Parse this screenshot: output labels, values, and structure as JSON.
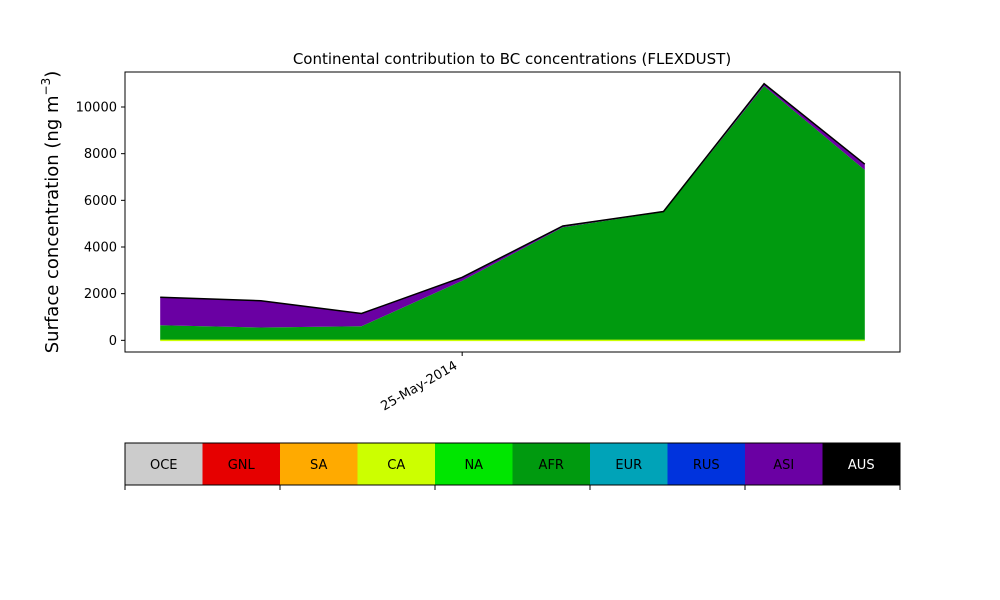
{
  "chart_data": {
    "type": "area",
    "stacked": true,
    "title": "Continental contribution to BC concentrations (FLEXDUST)",
    "ylabel_main": "Surface concentration (ng m",
    "ylabel_sup": "−3",
    "ylabel_close": ")",
    "ylim": [
      -500,
      11500
    ],
    "yticks": [
      0,
      2000,
      4000,
      6000,
      8000,
      10000
    ],
    "ytick_labels": [
      "0",
      "2000",
      "4000",
      "6000",
      "8000",
      "10000"
    ],
    "x": [
      0,
      1,
      2,
      3,
      4,
      5,
      6,
      7
    ],
    "xlim": [
      -0.35,
      7.35
    ],
    "xticks": [
      {
        "x": 3,
        "label": "25-May-2014"
      }
    ],
    "series": [
      {
        "name": "OCE",
        "color": "#cccccc",
        "values": [
          0,
          0,
          0,
          0,
          0,
          0,
          0,
          0
        ]
      },
      {
        "name": "GNL",
        "color": "#e60000",
        "values": [
          0,
          0,
          0,
          0,
          0,
          0,
          0,
          0
        ]
      },
      {
        "name": "SA",
        "color": "#ffaa00",
        "values": [
          0,
          0,
          0,
          0,
          0,
          0,
          0,
          0
        ]
      },
      {
        "name": "CA",
        "color": "#ccff00",
        "values": [
          0,
          0,
          0,
          0,
          0,
          0,
          0,
          0
        ]
      },
      {
        "name": "NA",
        "color": "#00e600",
        "values": [
          0,
          0,
          0,
          0,
          0,
          0,
          0,
          0
        ]
      },
      {
        "name": "AFR",
        "color": "#009a0f",
        "values": [
          650,
          550,
          600,
          2550,
          4850,
          5500,
          10900,
          7300
        ]
      },
      {
        "name": "EUR",
        "color": "#00a3b8",
        "values": [
          0,
          0,
          0,
          0,
          0,
          0,
          0,
          0
        ]
      },
      {
        "name": "RUS",
        "color": "#0033dd",
        "values": [
          0,
          0,
          0,
          0,
          0,
          0,
          0,
          0
        ]
      },
      {
        "name": "ASI",
        "color": "#6a00a3",
        "values": [
          1200,
          1150,
          550,
          150,
          50,
          20,
          100,
          250
        ]
      },
      {
        "name": "AUS",
        "color": "#000000",
        "values": [
          0,
          0,
          0,
          0,
          0,
          0,
          0,
          0
        ]
      }
    ]
  }
}
